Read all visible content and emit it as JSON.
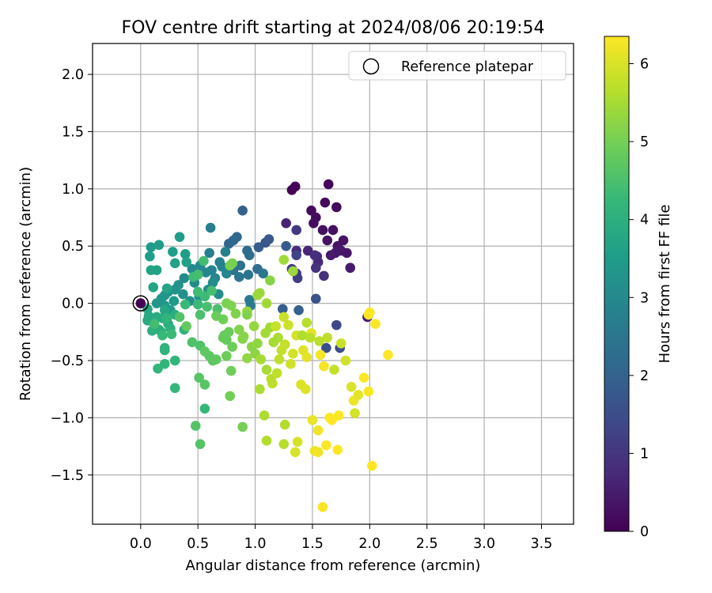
{
  "chart_data": {
    "type": "scatter",
    "title": "FOV centre drift starting at 2024/08/06 20:19:54",
    "xlabel": "Angular distance from reference (arcmin)",
    "ylabel": "Rotation from reference (arcmin)",
    "xlim": [
      -0.42,
      3.78
    ],
    "ylim": [
      -1.93,
      2.27
    ],
    "xticks": [
      0.0,
      0.5,
      1.0,
      1.5,
      2.0,
      2.5,
      3.0,
      3.5
    ],
    "xtick_labels": [
      "0.0",
      "0.5",
      "1.0",
      "1.5",
      "2.0",
      "2.5",
      "3.0",
      "3.5"
    ],
    "yticks": [
      -1.5,
      -1.0,
      -0.5,
      0.0,
      0.5,
      1.0,
      1.5,
      2.0
    ],
    "ytick_labels": [
      "−1.5",
      "−1.0",
      "−0.5",
      "0.0",
      "0.5",
      "1.0",
      "1.5",
      "2.0"
    ],
    "grid": true,
    "legend": {
      "position": "top-right",
      "entries": [
        "Reference platepar"
      ]
    },
    "reference_point": {
      "x": 0.0,
      "y": 0.0
    },
    "colorbar": {
      "label": "Hours from first FF file",
      "min": 0,
      "max": 6.35,
      "ticks": [
        0,
        1,
        2,
        3,
        4,
        5,
        6
      ],
      "tick_labels": [
        "0",
        "1",
        "2",
        "3",
        "4",
        "5",
        "6"
      ],
      "colormap": "viridis"
    },
    "colormap_stops": [
      "#440154",
      "#482878",
      "#3e4989",
      "#31688e",
      "#26828e",
      "#1f9e89",
      "#35b779",
      "#6ece58",
      "#b5de2b",
      "#fde725"
    ],
    "points": [
      {
        "x": 1.32,
        "y": 0.99,
        "h": 0.0
      },
      {
        "x": 1.35,
        "y": 1.02,
        "h": 0.05
      },
      {
        "x": 1.64,
        "y": 1.04,
        "h": 0.1
      },
      {
        "x": 1.61,
        "y": 0.88,
        "h": 0.12
      },
      {
        "x": 1.71,
        "y": 0.84,
        "h": 0.15
      },
      {
        "x": 1.49,
        "y": 0.81,
        "h": 0.18
      },
      {
        "x": 1.53,
        "y": 0.75,
        "h": 0.2
      },
      {
        "x": 1.51,
        "y": 0.7,
        "h": 0.22
      },
      {
        "x": 1.59,
        "y": 0.64,
        "h": 0.25
      },
      {
        "x": 1.68,
        "y": 0.64,
        "h": 0.27
      },
      {
        "x": 1.77,
        "y": 0.55,
        "h": 0.3
      },
      {
        "x": 1.63,
        "y": 0.55,
        "h": 0.32
      },
      {
        "x": 1.72,
        "y": 0.5,
        "h": 0.35
      },
      {
        "x": 1.75,
        "y": 0.46,
        "h": 0.38
      },
      {
        "x": 1.8,
        "y": 0.44,
        "h": 0.4
      },
      {
        "x": 1.7,
        "y": 0.44,
        "h": 0.42
      },
      {
        "x": 1.66,
        "y": 0.42,
        "h": 0.45
      },
      {
        "x": 1.83,
        "y": 0.31,
        "h": 0.47
      },
      {
        "x": 1.98,
        "y": -0.12,
        "h": 0.5
      },
      {
        "x": 1.27,
        "y": 0.7,
        "h": 0.6
      },
      {
        "x": 1.46,
        "y": 0.46,
        "h": 0.65
      },
      {
        "x": 1.54,
        "y": 0.41,
        "h": 0.7
      },
      {
        "x": 1.55,
        "y": 0.36,
        "h": 0.75
      },
      {
        "x": 1.36,
        "y": 0.46,
        "h": 0.8
      },
      {
        "x": 1.52,
        "y": 0.42,
        "h": 0.85
      },
      {
        "x": 1.6,
        "y": 0.24,
        "h": 0.9
      },
      {
        "x": 1.53,
        "y": 0.31,
        "h": 0.95
      },
      {
        "x": 1.36,
        "y": 0.64,
        "h": 1.05
      },
      {
        "x": 1.32,
        "y": 0.3,
        "h": 1.1
      },
      {
        "x": 1.36,
        "y": 0.26,
        "h": 1.15
      },
      {
        "x": 1.37,
        "y": 0.22,
        "h": 1.2
      },
      {
        "x": 1.36,
        "y": 0.42,
        "h": 1.3
      },
      {
        "x": 1.71,
        "y": -0.19,
        "h": 1.4
      },
      {
        "x": 1.74,
        "y": -0.39,
        "h": 1.5
      },
      {
        "x": 1.62,
        "y": -0.39,
        "h": 1.55
      },
      {
        "x": 1.53,
        "y": 0.04,
        "h": 1.6
      },
      {
        "x": 1.09,
        "y": 0.53,
        "h": 1.7
      },
      {
        "x": 1.12,
        "y": 0.56,
        "h": 1.75
      },
      {
        "x": 1.27,
        "y": 0.5,
        "h": 1.8
      },
      {
        "x": 1.03,
        "y": 0.49,
        "h": 1.85
      },
      {
        "x": 1.24,
        "y": -0.05,
        "h": 1.9
      },
      {
        "x": 1.38,
        "y": -0.06,
        "h": 1.95
      },
      {
        "x": 0.89,
        "y": 0.81,
        "h": 2.0
      },
      {
        "x": 0.77,
        "y": 0.52,
        "h": 2.05
      },
      {
        "x": 0.84,
        "y": 0.58,
        "h": 2.1
      },
      {
        "x": 0.81,
        "y": 0.55,
        "h": 2.15
      },
      {
        "x": 0.93,
        "y": 0.46,
        "h": 2.2
      },
      {
        "x": 0.95,
        "y": 0.42,
        "h": 2.25
      },
      {
        "x": 1.02,
        "y": 0.3,
        "h": 2.3
      },
      {
        "x": 0.87,
        "y": 0.33,
        "h": 2.35
      },
      {
        "x": 0.81,
        "y": 0.29,
        "h": 2.4
      },
      {
        "x": 0.94,
        "y": 0.25,
        "h": 2.45
      },
      {
        "x": 0.86,
        "y": 0.23,
        "h": 2.5
      },
      {
        "x": 1.07,
        "y": 0.26,
        "h": 2.55
      },
      {
        "x": 0.95,
        "y": 0.03,
        "h": 2.6
      },
      {
        "x": 0.96,
        "y": -0.02,
        "h": 2.65
      },
      {
        "x": 0.61,
        "y": 0.66,
        "h": 2.7
      },
      {
        "x": 0.6,
        "y": 0.44,
        "h": 2.75
      },
      {
        "x": 0.74,
        "y": 0.45,
        "h": 2.8
      },
      {
        "x": 0.69,
        "y": 0.36,
        "h": 2.82
      },
      {
        "x": 0.71,
        "y": 0.32,
        "h": 2.85
      },
      {
        "x": 0.62,
        "y": 0.29,
        "h": 2.88
      },
      {
        "x": 0.75,
        "y": 0.26,
        "h": 2.9
      },
      {
        "x": 0.65,
        "y": 0.22,
        "h": 2.92
      },
      {
        "x": 0.57,
        "y": 0.27,
        "h": 2.95
      },
      {
        "x": 0.52,
        "y": 0.33,
        "h": 2.97
      },
      {
        "x": 0.45,
        "y": 0.3,
        "h": 3.0
      },
      {
        "x": 0.38,
        "y": 0.22,
        "h": 3.02
      },
      {
        "x": 0.47,
        "y": 0.18,
        "h": 3.05
      },
      {
        "x": 0.59,
        "y": 0.12,
        "h": 3.07
      },
      {
        "x": 0.63,
        "y": 0.18,
        "h": 3.1
      },
      {
        "x": 0.68,
        "y": 0.08,
        "h": 3.12
      },
      {
        "x": 0.43,
        "y": 0.02,
        "h": 3.15
      },
      {
        "x": 0.37,
        "y": 0.08,
        "h": 3.17
      },
      {
        "x": 0.51,
        "y": 0.06,
        "h": 3.2
      },
      {
        "x": 0.33,
        "y": 0.16,
        "h": 3.22
      },
      {
        "x": 0.3,
        "y": 0.12,
        "h": 3.25
      },
      {
        "x": 0.24,
        "y": 0.1,
        "h": 3.27
      },
      {
        "x": 0.21,
        "y": 0.07,
        "h": 3.3
      },
      {
        "x": 0.18,
        "y": 0.04,
        "h": 3.32
      },
      {
        "x": 0.14,
        "y": 0.0,
        "h": 3.35
      },
      {
        "x": 0.21,
        "y": -0.02,
        "h": 3.37
      },
      {
        "x": 0.29,
        "y": 0.02,
        "h": 3.4
      },
      {
        "x": 0.26,
        "y": -0.06,
        "h": 3.42
      },
      {
        "x": 0.09,
        "y": 0.49,
        "h": 3.45
      },
      {
        "x": 0.16,
        "y": 0.51,
        "h": 3.47
      },
      {
        "x": 0.34,
        "y": 0.58,
        "h": 3.5
      },
      {
        "x": 0.08,
        "y": 0.41,
        "h": 3.52
      },
      {
        "x": 0.28,
        "y": 0.45,
        "h": 3.55
      },
      {
        "x": 0.39,
        "y": 0.43,
        "h": 3.57
      },
      {
        "x": 0.4,
        "y": 0.36,
        "h": 3.6
      },
      {
        "x": 0.3,
        "y": 0.35,
        "h": 3.62
      },
      {
        "x": 0.09,
        "y": 0.29,
        "h": 3.65
      },
      {
        "x": 0.14,
        "y": 0.29,
        "h": 3.67
      },
      {
        "x": 0.23,
        "y": 0.13,
        "h": 3.7
      },
      {
        "x": 0.11,
        "y": 0.14,
        "h": 3.72
      },
      {
        "x": 0.21,
        "y": -0.06,
        "h": 3.75
      },
      {
        "x": 0.06,
        "y": -0.05,
        "h": 3.77
      },
      {
        "x": 0.07,
        "y": -0.11,
        "h": 3.8
      },
      {
        "x": 0.1,
        "y": -0.16,
        "h": 3.82
      },
      {
        "x": 0.06,
        "y": -0.15,
        "h": 3.85
      },
      {
        "x": 0.14,
        "y": -0.12,
        "h": 3.87
      },
      {
        "x": 0.19,
        "y": -0.13,
        "h": 3.9
      },
      {
        "x": 0.24,
        "y": -0.18,
        "h": 3.92
      },
      {
        "x": 0.3,
        "y": -0.1,
        "h": 3.95
      },
      {
        "x": 0.16,
        "y": -0.23,
        "h": 3.97
      },
      {
        "x": 0.1,
        "y": -0.24,
        "h": 4.0
      },
      {
        "x": 0.18,
        "y": -0.25,
        "h": 4.02
      },
      {
        "x": 0.26,
        "y": -0.22,
        "h": 4.05
      },
      {
        "x": 0.38,
        "y": -0.23,
        "h": 4.07
      },
      {
        "x": 0.21,
        "y": -0.39,
        "h": 4.1
      },
      {
        "x": 0.21,
        "y": -0.41,
        "h": 4.12
      },
      {
        "x": 0.3,
        "y": -0.5,
        "h": 4.15
      },
      {
        "x": 0.21,
        "y": -0.53,
        "h": 4.17
      },
      {
        "x": 0.15,
        "y": -0.57,
        "h": 4.2
      },
      {
        "x": 0.3,
        "y": -0.74,
        "h": 4.22
      },
      {
        "x": 0.56,
        "y": -0.92,
        "h": 4.25
      },
      {
        "x": 0.39,
        "y": -0.01,
        "h": 4.27
      },
      {
        "x": 0.5,
        "y": -0.01,
        "h": 4.3
      },
      {
        "x": 0.56,
        "y": 0.06,
        "h": 4.32
      },
      {
        "x": 0.5,
        "y": 0.1,
        "h": 4.35
      },
      {
        "x": 0.46,
        "y": 0.23,
        "h": 4.37
      },
      {
        "x": 0.55,
        "y": 0.37,
        "h": 4.4
      },
      {
        "x": 0.5,
        "y": 0.25,
        "h": 4.42
      },
      {
        "x": 0.62,
        "y": 0.11,
        "h": 4.45
      },
      {
        "x": 0.58,
        "y": -0.03,
        "h": 4.47
      },
      {
        "x": 0.67,
        "y": -0.05,
        "h": 4.5
      },
      {
        "x": 0.52,
        "y": -0.1,
        "h": 4.52
      },
      {
        "x": 0.45,
        "y": -0.34,
        "h": 4.55
      },
      {
        "x": 0.52,
        "y": -0.37,
        "h": 4.57
      },
      {
        "x": 0.48,
        "y": -1.07,
        "h": 4.6
      },
      {
        "x": 0.52,
        "y": -1.23,
        "h": 4.62
      },
      {
        "x": 0.51,
        "y": -0.65,
        "h": 4.65
      },
      {
        "x": 0.56,
        "y": -0.71,
        "h": 4.67
      },
      {
        "x": 0.6,
        "y": -0.46,
        "h": 4.7
      },
      {
        "x": 0.63,
        "y": -0.5,
        "h": 4.72
      },
      {
        "x": 0.56,
        "y": -0.42,
        "h": 4.75
      },
      {
        "x": 0.66,
        "y": -0.49,
        "h": 4.77
      },
      {
        "x": 0.73,
        "y": -0.28,
        "h": 4.8
      },
      {
        "x": 0.75,
        "y": -0.32,
        "h": 4.82
      },
      {
        "x": 0.72,
        "y": -0.3,
        "h": 4.85
      },
      {
        "x": 0.77,
        "y": -0.25,
        "h": 4.87
      },
      {
        "x": 0.8,
        "y": -0.38,
        "h": 4.9
      },
      {
        "x": 0.75,
        "y": -0.46,
        "h": 4.92
      },
      {
        "x": 0.79,
        "y": -0.59,
        "h": 4.95
      },
      {
        "x": 0.78,
        "y": -0.81,
        "h": 4.97
      },
      {
        "x": 0.89,
        "y": -1.08,
        "h": 5.0
      },
      {
        "x": 0.8,
        "y": 0.35,
        "h": 5.02
      },
      {
        "x": 0.78,
        "y": 0.33,
        "h": 5.05
      },
      {
        "x": 0.75,
        "y": 0.0,
        "h": 5.07
      },
      {
        "x": 0.79,
        "y": -0.02,
        "h": 5.1
      },
      {
        "x": 0.83,
        "y": -0.09,
        "h": 5.12
      },
      {
        "x": 0.86,
        "y": -0.23,
        "h": 5.15
      },
      {
        "x": 0.89,
        "y": -0.31,
        "h": 5.17
      },
      {
        "x": 0.9,
        "y": -0.29,
        "h": 5.2
      },
      {
        "x": 0.97,
        "y": -0.38,
        "h": 5.22
      },
      {
        "x": 1.0,
        "y": -0.44,
        "h": 5.25
      },
      {
        "x": 1.02,
        "y": -0.35,
        "h": 5.27
      },
      {
        "x": 0.93,
        "y": -0.48,
        "h": 5.3
      },
      {
        "x": 0.99,
        "y": -0.2,
        "h": 5.32
      },
      {
        "x": 0.93,
        "y": -0.07,
        "h": 5.35
      },
      {
        "x": 1.02,
        "y": 0.07,
        "h": 5.37
      },
      {
        "x": 1.04,
        "y": 0.09,
        "h": 5.4
      },
      {
        "x": 1.1,
        "y": 0.0,
        "h": 5.42
      },
      {
        "x": 1.13,
        "y": -0.21,
        "h": 5.45
      },
      {
        "x": 1.09,
        "y": -0.26,
        "h": 5.47
      },
      {
        "x": 1.05,
        "y": -0.49,
        "h": 5.5
      },
      {
        "x": 1.1,
        "y": -0.58,
        "h": 5.52
      },
      {
        "x": 1.04,
        "y": -0.75,
        "h": 5.55
      },
      {
        "x": 1.08,
        "y": -0.98,
        "h": 5.57
      },
      {
        "x": 1.1,
        "y": -1.2,
        "h": 5.6
      },
      {
        "x": 1.26,
        "y": -1.06,
        "h": 5.62
      },
      {
        "x": 1.25,
        "y": -1.23,
        "h": 5.65
      },
      {
        "x": 1.14,
        "y": -0.66,
        "h": 5.67
      },
      {
        "x": 1.15,
        "y": -0.7,
        "h": 5.7
      },
      {
        "x": 1.19,
        "y": -0.61,
        "h": 5.72
      },
      {
        "x": 1.21,
        "y": -0.49,
        "h": 5.75
      },
      {
        "x": 1.23,
        "y": -0.41,
        "h": 5.77
      },
      {
        "x": 1.26,
        "y": -0.36,
        "h": 5.8
      },
      {
        "x": 1.18,
        "y": -0.2,
        "h": 5.82
      },
      {
        "x": 1.25,
        "y": -0.12,
        "h": 5.85
      },
      {
        "x": 1.29,
        "y": -0.19,
        "h": 5.87
      },
      {
        "x": 1.31,
        "y": -0.53,
        "h": 5.9
      },
      {
        "x": 1.33,
        "y": -0.44,
        "h": 5.92
      },
      {
        "x": 1.36,
        "y": -0.28,
        "h": 5.95
      },
      {
        "x": 1.37,
        "y": -1.21,
        "h": 5.97
      },
      {
        "x": 1.35,
        "y": -1.3,
        "h": 6.0
      },
      {
        "x": 1.4,
        "y": -0.71,
        "h": 6.02
      },
      {
        "x": 1.44,
        "y": -0.75,
        "h": 6.05
      },
      {
        "x": 1.42,
        "y": -0.41,
        "h": 6.07
      },
      {
        "x": 1.45,
        "y": -0.47,
        "h": 6.1
      },
      {
        "x": 1.49,
        "y": -0.26,
        "h": 6.12
      },
      {
        "x": 1.5,
        "y": -1.02,
        "h": 6.15
      },
      {
        "x": 1.52,
        "y": -1.29,
        "h": 6.17
      },
      {
        "x": 1.55,
        "y": -1.3,
        "h": 6.2
      },
      {
        "x": 1.55,
        "y": -1.11,
        "h": 6.22
      },
      {
        "x": 1.57,
        "y": -0.45,
        "h": 6.25
      },
      {
        "x": 1.6,
        "y": -0.55,
        "h": 6.27
      },
      {
        "x": 1.59,
        "y": -1.78,
        "h": 6.3
      },
      {
        "x": 1.62,
        "y": -1.24,
        "h": 6.32
      },
      {
        "x": 1.65,
        "y": -1.0,
        "h": 6.34
      },
      {
        "x": 1.67,
        "y": -1.02,
        "h": 6.35
      },
      {
        "x": 1.72,
        "y": -1.28,
        "h": 6.35
      },
      {
        "x": 1.73,
        "y": -0.98,
        "h": 6.35
      },
      {
        "x": 1.95,
        "y": -0.65,
        "h": 6.35
      },
      {
        "x": 1.99,
        "y": -0.1,
        "h": 6.35
      },
      {
        "x": 2.0,
        "y": -0.08,
        "h": 6.35
      },
      {
        "x": 2.02,
        "y": -1.42,
        "h": 6.35
      },
      {
        "x": 2.05,
        "y": -0.18,
        "h": 6.35
      },
      {
        "x": 2.16,
        "y": -0.45,
        "h": 6.35
      },
      {
        "x": 1.86,
        "y": -0.85,
        "h": 6.2
      },
      {
        "x": 1.9,
        "y": -0.8,
        "h": 6.1
      },
      {
        "x": 1.84,
        "y": -0.73,
        "h": 6.0
      },
      {
        "x": 1.87,
        "y": -0.96,
        "h": 5.95
      },
      {
        "x": 1.69,
        "y": -0.58,
        "h": 5.8
      },
      {
        "x": 1.79,
        "y": -0.5,
        "h": 5.9
      },
      {
        "x": 1.75,
        "y": -0.35,
        "h": 5.85
      },
      {
        "x": 1.99,
        "y": -0.77,
        "h": 6.3
      },
      {
        "x": 1.63,
        "y": -0.3,
        "h": 5.75
      },
      {
        "x": 1.56,
        "y": -0.33,
        "h": 5.7
      },
      {
        "x": 1.48,
        "y": -0.3,
        "h": 5.68
      },
      {
        "x": 1.45,
        "y": -0.17,
        "h": 5.65
      },
      {
        "x": 1.41,
        "y": -0.28,
        "h": 5.6
      },
      {
        "x": 1.2,
        "y": -0.3,
        "h": 5.55
      },
      {
        "x": 1.16,
        "y": -0.34,
        "h": 5.5
      },
      {
        "x": 1.25,
        "y": 0.38,
        "h": 5.45
      },
      {
        "x": 1.33,
        "y": 0.28,
        "h": 5.4
      },
      {
        "x": 1.13,
        "y": 0.2,
        "h": 5.2
      },
      {
        "x": 0.93,
        "y": -0.1,
        "h": 5.1
      },
      {
        "x": 0.72,
        "y": -0.14,
        "h": 4.95
      },
      {
        "x": 0.66,
        "y": -0.11,
        "h": 4.88
      },
      {
        "x": 0.4,
        "y": -0.2,
        "h": 4.8
      },
      {
        "x": 0.34,
        "y": -0.12,
        "h": 4.6
      },
      {
        "x": 0.12,
        "y": -0.18,
        "h": 4.4
      },
      {
        "x": 0.27,
        "y": -0.27,
        "h": 4.3
      },
      {
        "x": 0.19,
        "y": -0.28,
        "h": 4.25
      },
      {
        "x": 0.23,
        "y": -0.13,
        "h": 4.15
      }
    ]
  }
}
